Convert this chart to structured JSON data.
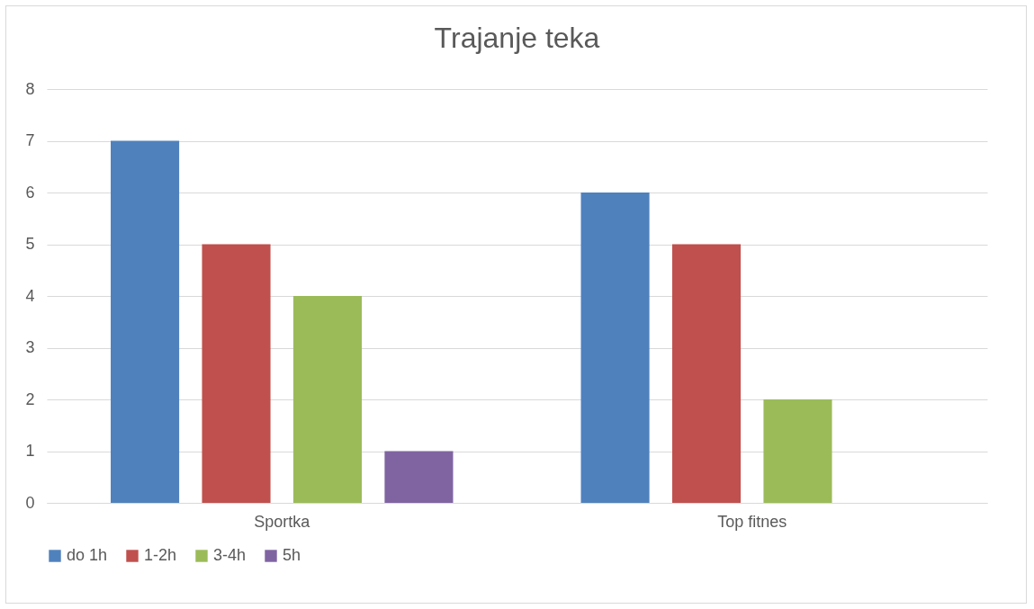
{
  "chart_data": {
    "type": "bar",
    "title": "Trajanje teka",
    "categories": [
      "Sportka",
      "Top fitnes"
    ],
    "series": [
      {
        "name": "do 1h",
        "color": "#4f81bd",
        "values": [
          7,
          6
        ]
      },
      {
        "name": "1-2h",
        "color": "#c0504d",
        "values": [
          5,
          5
        ]
      },
      {
        "name": "3-4h",
        "color": "#9bbb59",
        "values": [
          4,
          2
        ]
      },
      {
        "name": "5h",
        "color": "#8064a2",
        "values": [
          1,
          null
        ]
      }
    ],
    "ylim": [
      0,
      8
    ],
    "yticks": [
      0,
      1,
      2,
      3,
      4,
      5,
      6,
      7,
      8
    ],
    "grid": "y",
    "legend": "bottom"
  }
}
